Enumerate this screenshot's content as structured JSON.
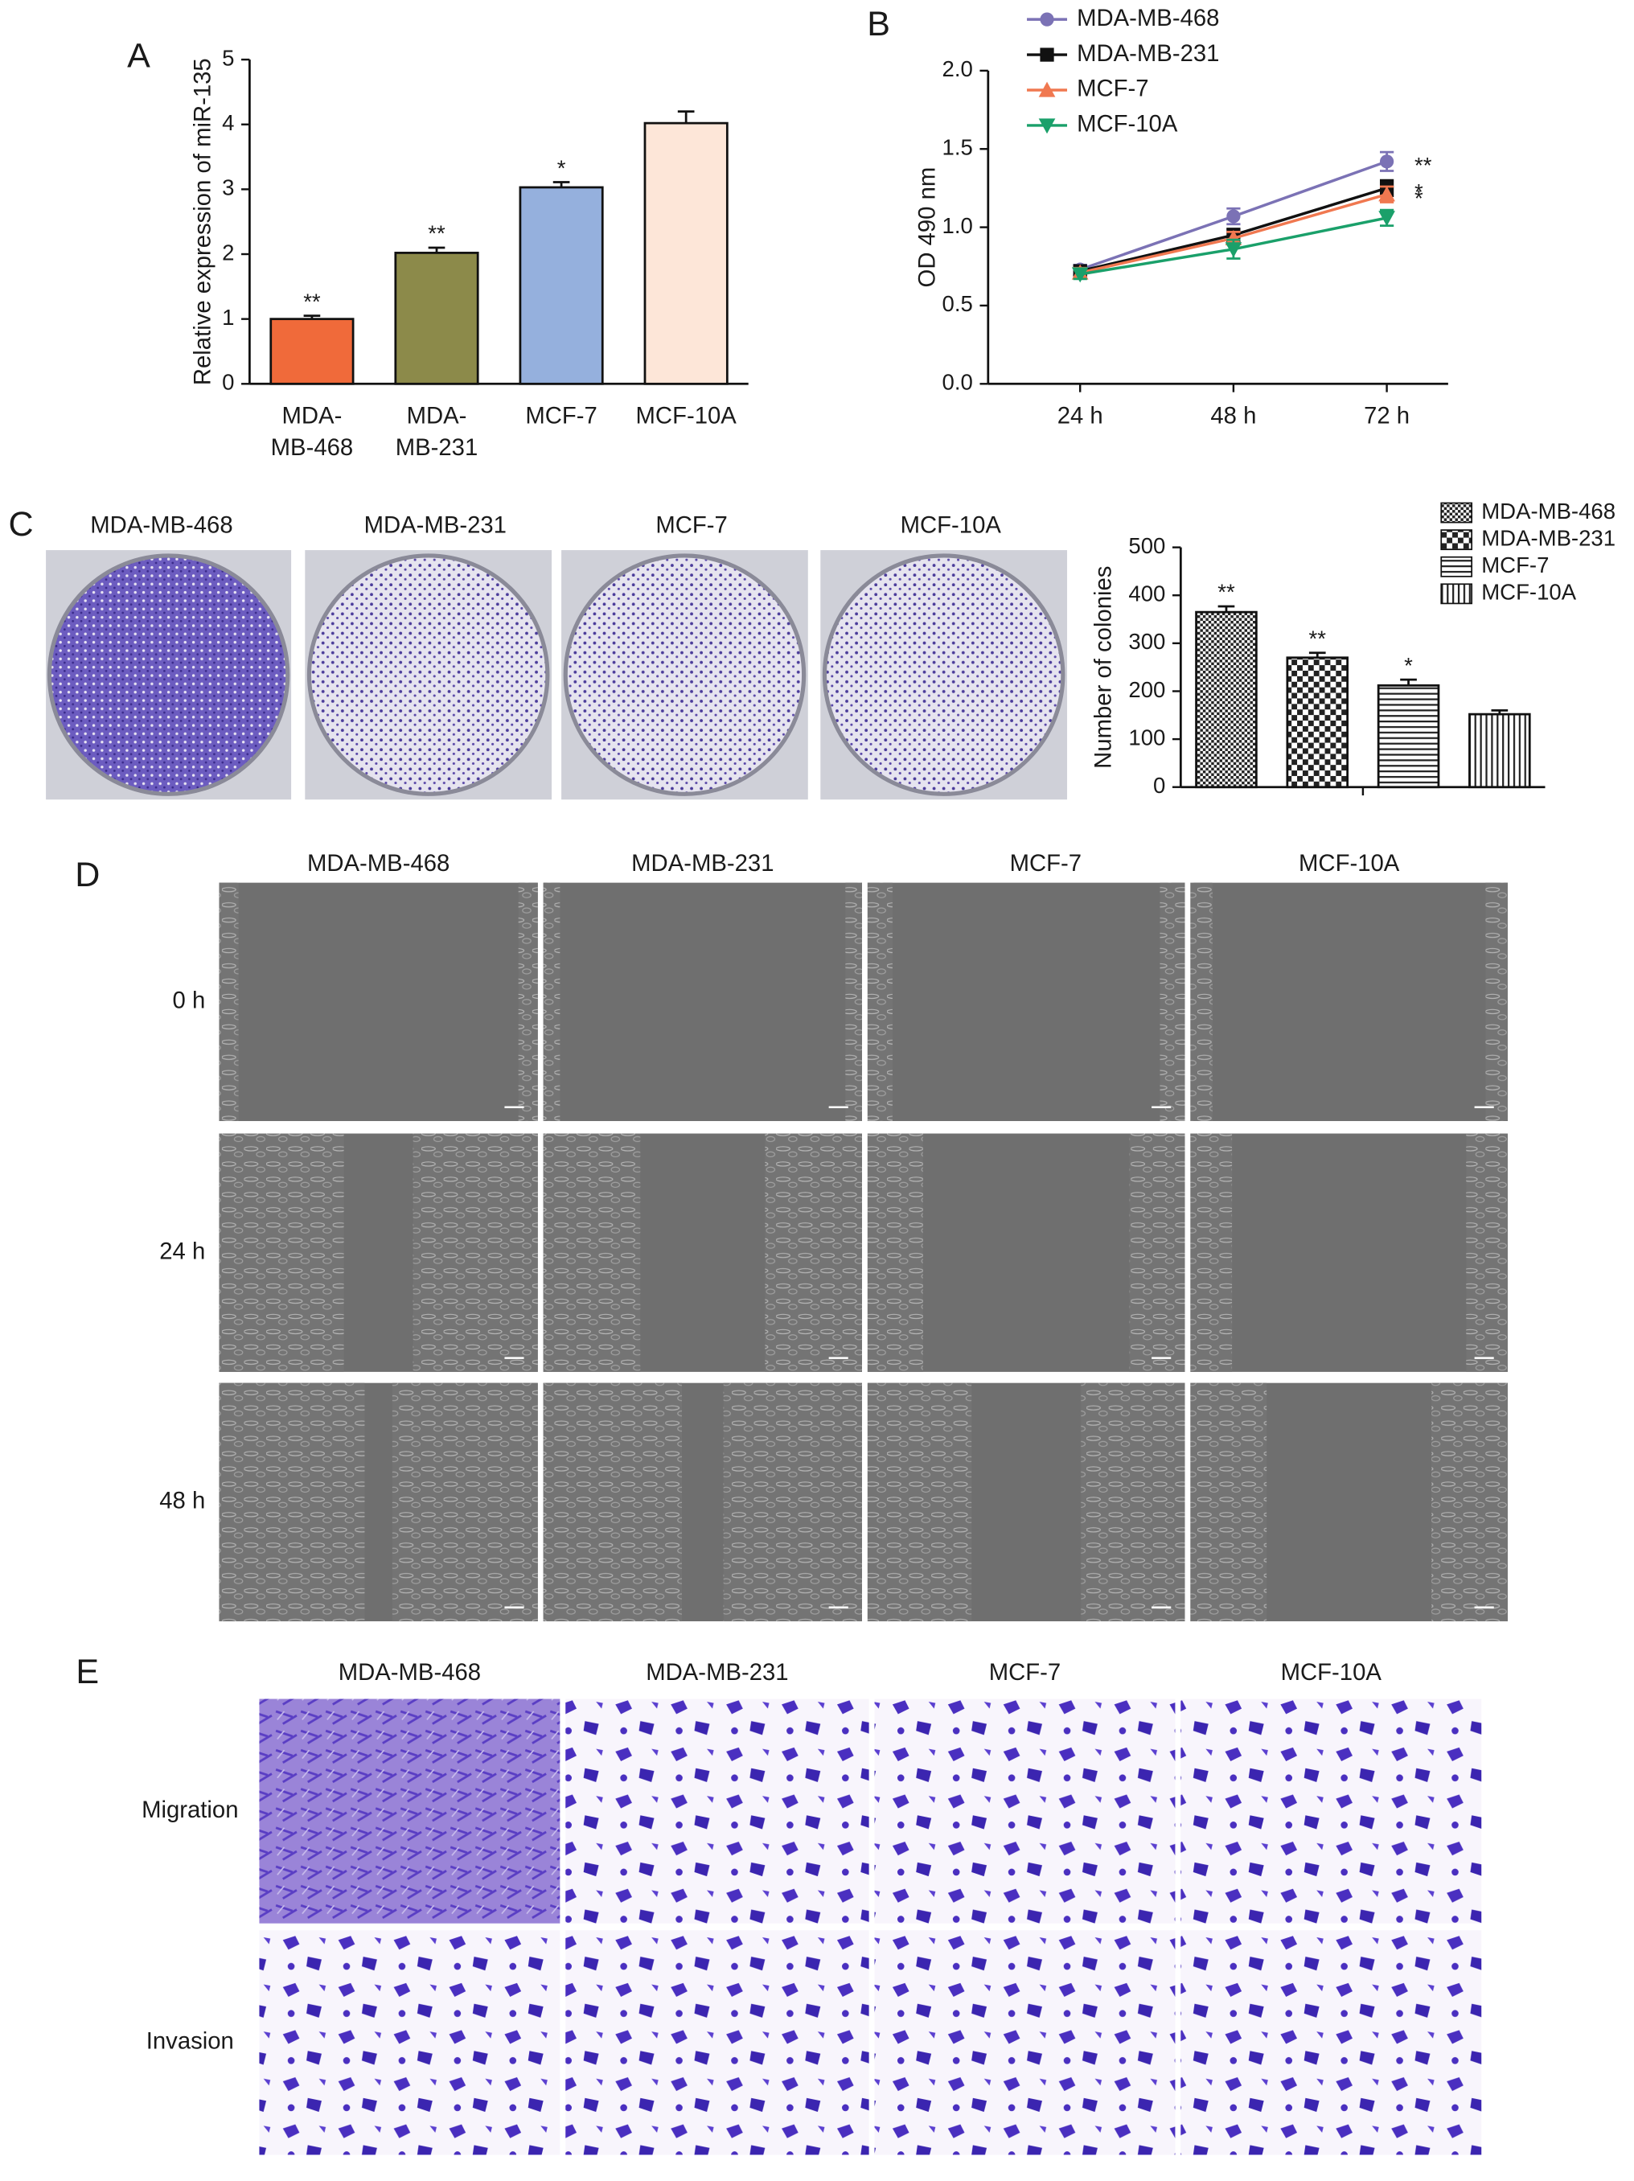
{
  "chart_data": [
    {
      "type": "bar",
      "panel": "A",
      "y_label": "Relative expression of miR-135",
      "categories": [
        [
          "MDA-",
          "MB-468"
        ],
        [
          "MDA-",
          "MB-231"
        ],
        [
          "MCF-7"
        ],
        [
          "MCF-10A"
        ]
      ],
      "values": [
        1.0,
        2.02,
        3.03,
        4.02
      ],
      "errors": [
        0.05,
        0.08,
        0.08,
        0.18
      ],
      "colors": [
        "#f06a3a",
        "#8c8a4a",
        "#95b0dd",
        "#fde6d8"
      ],
      "annotations": [
        "**",
        "**",
        "*",
        null
      ],
      "ylim": [
        0,
        5
      ],
      "yticks": [
        0,
        1,
        2,
        3,
        4,
        5
      ]
    },
    {
      "type": "line",
      "panel": "B",
      "y_label": "OD 490 nm",
      "categories": [
        "24 h",
        "48 h",
        "72 h"
      ],
      "series": [
        {
          "name": "MDA-MB-468",
          "color": "#7b72b5",
          "marker": "circle",
          "values": [
            0.73,
            1.07,
            1.42
          ],
          "errors": [
            0.03,
            0.05,
            0.06
          ]
        },
        {
          "name": "MDA-MB-231",
          "color": "#111111",
          "marker": "square",
          "values": [
            0.72,
            0.95,
            1.25
          ],
          "errors": [
            0.03,
            0.04,
            0.05
          ]
        },
        {
          "name": "MCF-7",
          "color": "#f07850",
          "marker": "triangle",
          "values": [
            0.71,
            0.93,
            1.21
          ],
          "errors": [
            0.03,
            0.04,
            0.05
          ]
        },
        {
          "name": "MCF-10A",
          "color": "#1aa06a",
          "marker": "triangle-down",
          "values": [
            0.7,
            0.86,
            1.06
          ],
          "errors": [
            0.03,
            0.06,
            0.05
          ]
        }
      ],
      "annotations": [
        "**",
        "*",
        "*",
        null
      ],
      "ylim": [
        0,
        2
      ],
      "yticks": [
        {
          "value": 0,
          "label": "0.0"
        },
        {
          "value": 0.5,
          "label": "0.5"
        },
        {
          "value": 1,
          "label": "1.0"
        },
        {
          "value": 1.5,
          "label": "1.5"
        },
        {
          "value": 2,
          "label": "2.0"
        }
      ]
    },
    {
      "type": "bar",
      "panel": "C",
      "y_label": "Number of colonies",
      "image_labels": [
        "MDA-MB-468",
        "MDA-MB-231",
        "MCF-7",
        "MCF-10A"
      ],
      "categories": [
        null
      ],
      "series": [
        {
          "name": "MDA-MB-468",
          "hatch": "dots",
          "values": [
            365
          ],
          "errors": [
            12
          ],
          "annotations": [
            "**"
          ]
        },
        {
          "name": "MDA-MB-231",
          "hatch": "checker",
          "values": [
            270
          ],
          "errors": [
            10
          ],
          "annotations": [
            "**"
          ]
        },
        {
          "name": "MCF-7",
          "hatch": "horizontal",
          "values": [
            212
          ],
          "errors": [
            12
          ],
          "annotations": [
            "*"
          ]
        },
        {
          "name": "MCF-10A",
          "hatch": "vertical",
          "values": [
            152
          ],
          "errors": [
            8
          ],
          "annotations": [
            null
          ]
        }
      ],
      "ylim": [
        0,
        500
      ],
      "yticks": [
        0,
        100,
        200,
        300,
        400,
        500
      ]
    }
  ],
  "wound_healing": {
    "panel": "D",
    "columns": [
      "MDA-MB-468",
      "MDA-MB-231",
      "MCF-7",
      "MCF-10A"
    ],
    "rows": [
      "0 h",
      "24 h",
      "48 h"
    ]
  },
  "transwell": {
    "panel": "E",
    "columns": [
      "MDA-MB-468",
      "MDA-MB-231",
      "MCF-7",
      "MCF-10A"
    ],
    "rows": [
      "Migration",
      "Invasion"
    ]
  }
}
